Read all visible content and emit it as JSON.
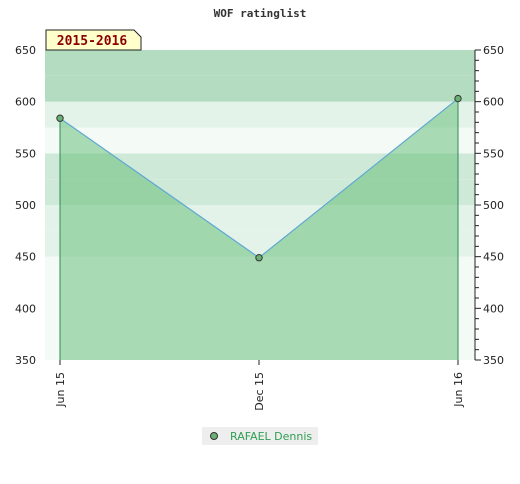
{
  "chart_data": {
    "type": "area",
    "title": "WOF ratinglist",
    "badge": "2015-2016",
    "x": [
      "Jun 15",
      "Dec 15",
      "Jun 16"
    ],
    "series": [
      {
        "name": "RAFAEL Dennis",
        "values": [
          584,
          449,
          603
        ]
      }
    ],
    "ylim": [
      350,
      650
    ],
    "yticks_major": [
      350,
      400,
      450,
      500,
      550,
      600,
      650
    ],
    "ytick_labels": [
      "350",
      "400",
      "450",
      "500",
      "550",
      "600",
      "650"
    ],
    "grid": true,
    "legend_position": "bottom"
  },
  "colors": {
    "line": "#5fa8d3",
    "area": "#6abf7b",
    "legend_text": "#2e9e52",
    "marker": "#6aaf74",
    "badge_bg": "#ffffcc",
    "band_palette": [
      "#b3dcc0",
      "#cfe9d8",
      "#e4f3e9",
      "#f4faf6"
    ]
  }
}
